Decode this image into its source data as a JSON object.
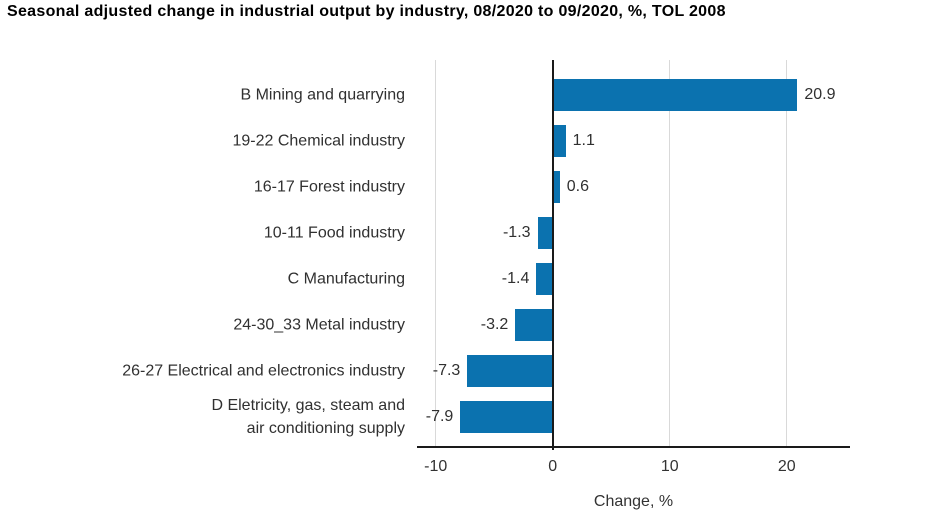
{
  "chart_data": {
    "type": "bar",
    "orientation": "horizontal",
    "title": "Seasonal adjusted change in industrial output by industry, 08/2020 to 09/2020, %, TOL 2008",
    "categories": [
      "B Mining and quarrying",
      "19-22 Chemical industry",
      "16-17 Forest industry",
      "10-11 Food industry",
      "C Manufacturing",
      "24-30_33 Metal industry",
      "26-27 Electrical and electronics industry",
      "D Eletricity, gas, steam and\nair conditioning supply"
    ],
    "values": [
      20.9,
      1.1,
      0.6,
      -1.3,
      -1.4,
      -3.2,
      -7.3,
      -7.9
    ],
    "value_labels": [
      "20.9",
      "1.1",
      "0.6",
      "-1.3",
      "-1.4",
      "-3.2",
      "-7.3",
      "-7.9"
    ],
    "xlabel": "Change, %",
    "ylabel": "",
    "xlim": [
      -11.6,
      25.4
    ],
    "xticks": [
      -10,
      0,
      10,
      20
    ],
    "grid": true,
    "legend": false,
    "colors": {
      "bar": "#0b72af",
      "gridline": "#d9d9d9",
      "axis": "#1a1a1a",
      "text": "#303030",
      "title": "#000000",
      "background": "#ffffff"
    }
  }
}
